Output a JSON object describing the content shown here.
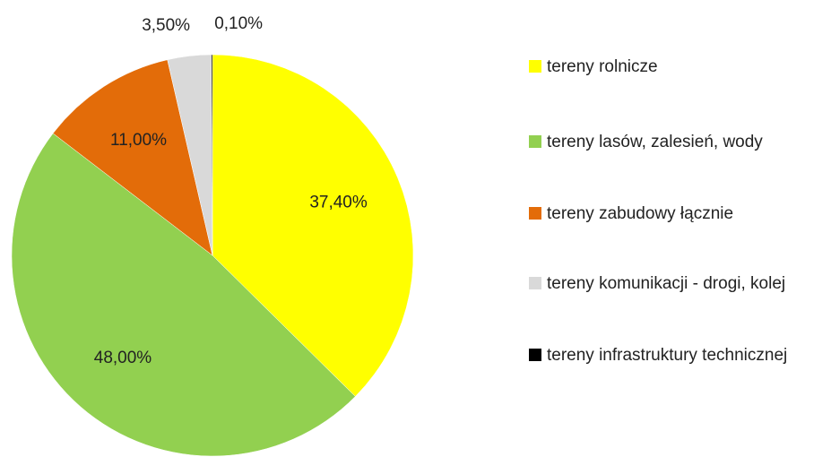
{
  "chart_data": {
    "type": "pie",
    "categories": [
      "tereny rolnicze",
      "tereny lasów, zalesień, wody",
      "tereny zabudowy łącznie",
      "tereny komunikacji - drogi, kolej",
      "tereny infrastruktury technicznej"
    ],
    "values": [
      37.4,
      48,
      11,
      3.5,
      0.1
    ],
    "value_labels": [
      "37,40%",
      "48,00%",
      "11,00%",
      "3,50%",
      "0,10%"
    ],
    "colors": [
      "#ffff00",
      "#92d050",
      "#e36c09",
      "#d9d9d9",
      "#000000"
    ],
    "legend": "right"
  }
}
